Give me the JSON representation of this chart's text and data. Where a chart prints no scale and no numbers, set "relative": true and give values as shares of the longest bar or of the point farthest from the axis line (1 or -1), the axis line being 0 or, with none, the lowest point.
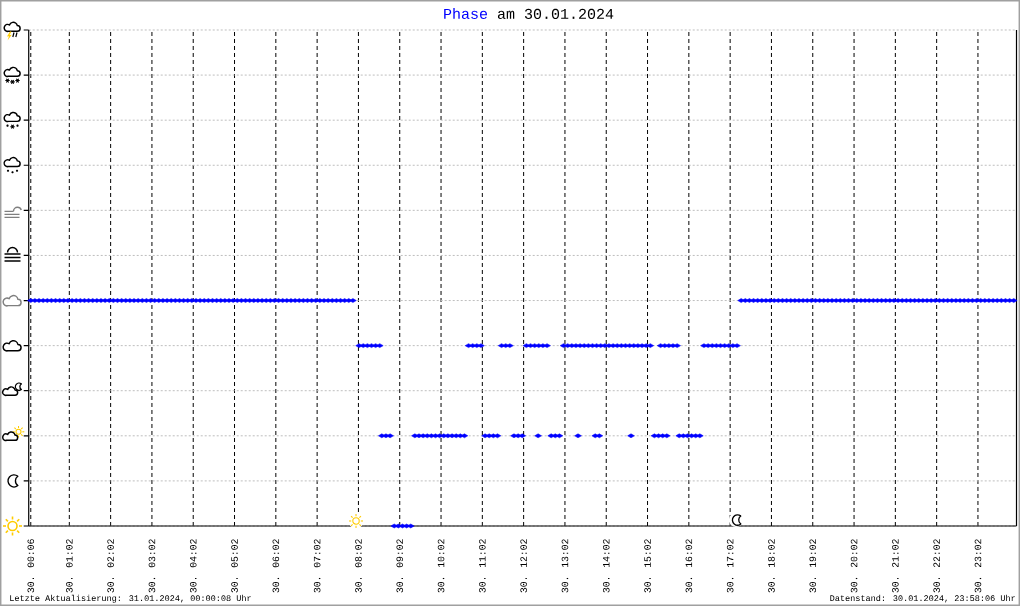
{
  "chart_data": {
    "type": "scatter",
    "title": "am 30.01.2024",
    "relative": true,
    "marker": "diamond",
    "grid": true,
    "xlim": [
      "2024-01-30T00:03",
      "2024-01-30T23:58"
    ],
    "xticks": [
      {
        "value": "2024-01-30T00:06",
        "label": "30. 00:06"
      },
      {
        "value": "2024-01-30T01:02",
        "label": "30. 01:02"
      },
      {
        "value": "2024-01-30T02:02",
        "label": "30. 02:02"
      },
      {
        "value": "2024-01-30T03:02",
        "label": "30. 03:02"
      },
      {
        "value": "2024-01-30T04:02",
        "label": "30. 04:02"
      },
      {
        "value": "2024-01-30T05:02",
        "label": "30. 05:02"
      },
      {
        "value": "2024-01-30T06:02",
        "label": "30. 06:02"
      },
      {
        "value": "2024-01-30T07:02",
        "label": "30. 07:02"
      },
      {
        "value": "2024-01-30T08:02",
        "label": "30. 08:02"
      },
      {
        "value": "2024-01-30T09:02",
        "label": "30. 09:02"
      },
      {
        "value": "2024-01-30T10:02",
        "label": "30. 10:02"
      },
      {
        "value": "2024-01-30T11:02",
        "label": "30. 11:02"
      },
      {
        "value": "2024-01-30T12:02",
        "label": "30. 12:02"
      },
      {
        "value": "2024-01-30T13:02",
        "label": "30. 13:02"
      },
      {
        "value": "2024-01-30T14:02",
        "label": "30. 14:02"
      },
      {
        "value": "2024-01-30T15:02",
        "label": "30. 15:02"
      },
      {
        "value": "2024-01-30T16:02",
        "label": "30. 16:02"
      },
      {
        "value": "2024-01-30T17:02",
        "label": "30. 17:02"
      },
      {
        "value": "2024-01-30T18:02",
        "label": "30. 18:02"
      },
      {
        "value": "2024-01-30T19:02",
        "label": "30. 19:02"
      },
      {
        "value": "2024-01-30T20:02",
        "label": "30. 20:02"
      },
      {
        "value": "2024-01-30T21:02",
        "label": "30. 21:02"
      },
      {
        "value": "2024-01-30T22:02",
        "label": "30. 22:02"
      },
      {
        "value": "2024-01-30T23:02",
        "label": "30. 23:02"
      }
    ],
    "x": [
      "2024-01-30T00:06",
      "2024-01-30T00:12",
      "2024-01-30T00:18",
      "2024-01-30T00:24",
      "2024-01-30T00:30",
      "2024-01-30T00:36",
      "2024-01-30T00:42",
      "2024-01-30T00:48",
      "2024-01-30T00:54",
      "2024-01-30T01:00",
      "2024-01-30T01:06",
      "2024-01-30T01:12",
      "2024-01-30T01:18",
      "2024-01-30T01:24",
      "2024-01-30T01:30",
      "2024-01-30T01:36",
      "2024-01-30T01:42",
      "2024-01-30T01:48",
      "2024-01-30T01:54",
      "2024-01-30T02:00",
      "2024-01-30T02:06",
      "2024-01-30T02:12",
      "2024-01-30T02:18",
      "2024-01-30T02:24",
      "2024-01-30T02:30",
      "2024-01-30T02:36",
      "2024-01-30T02:42",
      "2024-01-30T02:48",
      "2024-01-30T02:54",
      "2024-01-30T03:00",
      "2024-01-30T03:06",
      "2024-01-30T03:12",
      "2024-01-30T03:18",
      "2024-01-30T03:24",
      "2024-01-30T03:30",
      "2024-01-30T03:36",
      "2024-01-30T03:42",
      "2024-01-30T03:48",
      "2024-01-30T03:54",
      "2024-01-30T04:00",
      "2024-01-30T04:06",
      "2024-01-30T04:12",
      "2024-01-30T04:18",
      "2024-01-30T04:24",
      "2024-01-30T04:30",
      "2024-01-30T04:36",
      "2024-01-30T04:42",
      "2024-01-30T04:48",
      "2024-01-30T04:54",
      "2024-01-30T05:00",
      "2024-01-30T05:06",
      "2024-01-30T05:12",
      "2024-01-30T05:18",
      "2024-01-30T05:24",
      "2024-01-30T05:30",
      "2024-01-30T05:36",
      "2024-01-30T05:42",
      "2024-01-30T05:48",
      "2024-01-30T05:54",
      "2024-01-30T06:00",
      "2024-01-30T06:06",
      "2024-01-30T06:12",
      "2024-01-30T06:18",
      "2024-01-30T06:24",
      "2024-01-30T06:30",
      "2024-01-30T06:36",
      "2024-01-30T06:42",
      "2024-01-30T06:48",
      "2024-01-30T06:54",
      "2024-01-30T07:00",
      "2024-01-30T07:06",
      "2024-01-30T07:12",
      "2024-01-30T07:18",
      "2024-01-30T07:24",
      "2024-01-30T07:30",
      "2024-01-30T07:36",
      "2024-01-30T07:42",
      "2024-01-30T07:48",
      "2024-01-30T07:54",
      "2024-01-30T08:03",
      "2024-01-30T08:09",
      "2024-01-30T08:15",
      "2024-01-30T08:21",
      "2024-01-30T08:27",
      "2024-01-30T08:33",
      "2024-01-30T08:36",
      "2024-01-30T08:42",
      "2024-01-30T08:48",
      "2024-01-30T08:54",
      "2024-01-30T09:00",
      "2024-01-30T09:06",
      "2024-01-30T09:12",
      "2024-01-30T09:18",
      "2024-01-30T09:24",
      "2024-01-30T09:30",
      "2024-01-30T09:36",
      "2024-01-30T09:42",
      "2024-01-30T09:48",
      "2024-01-30T09:54",
      "2024-01-30T10:00",
      "2024-01-30T10:06",
      "2024-01-30T10:12",
      "2024-01-30T10:18",
      "2024-01-30T10:24",
      "2024-01-30T10:30",
      "2024-01-30T10:36",
      "2024-01-30T10:42",
      "2024-01-30T10:48",
      "2024-01-30T10:54",
      "2024-01-30T11:00",
      "2024-01-30T11:06",
      "2024-01-30T11:12",
      "2024-01-30T11:18",
      "2024-01-30T11:24",
      "2024-01-30T11:30",
      "2024-01-30T11:36",
      "2024-01-30T11:42",
      "2024-01-30T11:48",
      "2024-01-30T11:54",
      "2024-01-30T12:00",
      "2024-01-30T12:06",
      "2024-01-30T12:12",
      "2024-01-30T12:18",
      "2024-01-30T12:23",
      "2024-01-30T12:24",
      "2024-01-30T12:30",
      "2024-01-30T12:36",
      "2024-01-30T12:42",
      "2024-01-30T12:48",
      "2024-01-30T12:54",
      "2024-01-30T13:00",
      "2024-01-30T13:06",
      "2024-01-30T13:12",
      "2024-01-30T13:18",
      "2024-01-30T13:21",
      "2024-01-30T13:24",
      "2024-01-30T13:30",
      "2024-01-30T13:36",
      "2024-01-30T13:42",
      "2024-01-30T13:46",
      "2024-01-30T13:48",
      "2024-01-30T13:52",
      "2024-01-30T13:54",
      "2024-01-30T14:00",
      "2024-01-30T14:06",
      "2024-01-30T14:12",
      "2024-01-30T14:18",
      "2024-01-30T14:24",
      "2024-01-30T14:30",
      "2024-01-30T14:36",
      "2024-01-30T14:38",
      "2024-01-30T14:42",
      "2024-01-30T14:48",
      "2024-01-30T14:54",
      "2024-01-30T15:00",
      "2024-01-30T15:06",
      "2024-01-30T15:12",
      "2024-01-30T15:18",
      "2024-01-30T15:21",
      "2024-01-30T15:24",
      "2024-01-30T15:27",
      "2024-01-30T15:30",
      "2024-01-30T15:33",
      "2024-01-30T15:39",
      "2024-01-30T15:45",
      "2024-01-30T15:48",
      "2024-01-30T15:54",
      "2024-01-30T16:00",
      "2024-01-30T16:06",
      "2024-01-30T16:12",
      "2024-01-30T16:18",
      "2024-01-30T16:24",
      "2024-01-30T16:30",
      "2024-01-30T16:36",
      "2024-01-30T16:42",
      "2024-01-30T16:48",
      "2024-01-30T16:54",
      "2024-01-30T17:00",
      "2024-01-30T17:06",
      "2024-01-30T17:12",
      "2024-01-30T17:18",
      "2024-01-30T17:24",
      "2024-01-30T17:30",
      "2024-01-30T17:36",
      "2024-01-30T17:42",
      "2024-01-30T17:48",
      "2024-01-30T17:54",
      "2024-01-30T18:00",
      "2024-01-30T18:06",
      "2024-01-30T18:12",
      "2024-01-30T18:18",
      "2024-01-30T18:24",
      "2024-01-30T18:30",
      "2024-01-30T18:36",
      "2024-01-30T18:42",
      "2024-01-30T18:48",
      "2024-01-30T18:54",
      "2024-01-30T19:00",
      "2024-01-30T19:06",
      "2024-01-30T19:12",
      "2024-01-30T19:18",
      "2024-01-30T19:24",
      "2024-01-30T19:30",
      "2024-01-30T19:36",
      "2024-01-30T19:42",
      "2024-01-30T19:48",
      "2024-01-30T19:54",
      "2024-01-30T20:00",
      "2024-01-30T20:06",
      "2024-01-30T20:12",
      "2024-01-30T20:18",
      "2024-01-30T20:24",
      "2024-01-30T20:30",
      "2024-01-30T20:36",
      "2024-01-30T20:42",
      "2024-01-30T20:48",
      "2024-01-30T20:54",
      "2024-01-30T21:00",
      "2024-01-30T21:06",
      "2024-01-30T21:12",
      "2024-01-30T21:18",
      "2024-01-30T21:24",
      "2024-01-30T21:30",
      "2024-01-30T21:36",
      "2024-01-30T21:42",
      "2024-01-30T21:48",
      "2024-01-30T21:54",
      "2024-01-30T22:00",
      "2024-01-30T22:06",
      "2024-01-30T22:12",
      "2024-01-30T22:18",
      "2024-01-30T22:24",
      "2024-01-30T22:30",
      "2024-01-30T22:36",
      "2024-01-30T22:42",
      "2024-01-30T22:48",
      "2024-01-30T22:54",
      "2024-01-30T23:00",
      "2024-01-30T23:06",
      "2024-01-30T23:12",
      "2024-01-30T23:18",
      "2024-01-30T23:24",
      "2024-01-30T23:30",
      "2024-01-30T23:36",
      "2024-01-30T23:42",
      "2024-01-30T23:48",
      "2024-01-30T23:54"
    ],
    "series": [
      {
        "name": "Phase",
        "color": "#0000ff",
        "values": [
          1,
          1,
          1,
          1,
          1,
          1,
          1,
          1,
          1,
          1,
          1,
          1,
          1,
          1,
          1,
          1,
          1,
          1,
          1,
          1,
          1,
          1,
          1,
          1,
          1,
          1,
          1,
          1,
          1,
          1,
          1,
          1,
          1,
          1,
          1,
          1,
          1,
          1,
          1,
          1,
          1,
          1,
          1,
          1,
          1,
          1,
          1,
          1,
          1,
          1,
          1,
          1,
          1,
          1,
          1,
          1,
          1,
          1,
          1,
          1,
          1,
          1,
          1,
          1,
          1,
          1,
          1,
          1,
          1,
          1,
          1,
          1,
          1,
          1,
          1,
          1,
          1,
          1,
          1,
          0.8,
          0.8,
          0.8,
          0.8,
          0.8,
          0.8,
          0.4,
          0.4,
          0.4,
          0,
          0,
          0,
          0,
          0,
          0.4,
          0.4,
          0.4,
          0.4,
          0.4,
          0.4,
          0.4,
          0.4,
          0.4,
          0.4,
          0.4,
          0.4,
          0.4,
          0.8,
          0.8,
          0.8,
          0.8,
          0.4,
          0.4,
          0.4,
          0.4,
          0.8,
          0.8,
          0.8,
          0.4,
          0.4,
          0.4,
          0.8,
          0.8,
          0.8,
          0.4,
          0.8,
          0.8,
          0.8,
          0.4,
          0.4,
          0.4,
          0.8,
          0.8,
          0.8,
          0.8,
          0.4,
          0.8,
          0.8,
          0.8,
          0.8,
          0.4,
          0.8,
          0.4,
          0.8,
          0.8,
          0.8,
          0.8,
          0.8,
          0.8,
          0.8,
          0.8,
          0.4,
          0.8,
          0.8,
          0.8,
          0.8,
          0.8,
          0.4,
          0.4,
          0.8,
          0.4,
          0.8,
          0.4,
          0.8,
          0.8,
          0.8,
          0.4,
          0.4,
          0.4,
          0.4,
          0.4,
          0.4,
          0.8,
          0.8,
          0.8,
          0.8,
          0.8,
          0.8,
          0.8,
          0.8,
          0.8,
          1,
          1,
          1,
          1,
          1,
          1,
          1,
          1,
          1,
          1,
          1,
          1,
          1,
          1,
          1,
          1,
          1,
          1,
          1,
          1,
          1,
          1,
          1,
          1,
          1,
          1,
          1,
          1,
          1,
          1,
          1,
          1,
          1,
          1,
          1,
          1,
          1,
          1,
          1,
          1,
          1,
          1,
          1,
          1,
          1,
          1,
          1,
          1,
          1,
          1,
          1,
          1,
          1,
          1,
          1,
          1,
          1,
          1,
          1,
          1,
          1,
          1,
          1,
          1,
          1,
          1,
          1
        ]
      }
    ],
    "annotations": [
      "Letzte Aktualisierung: 31.01.2024, 00:00:08 Uhr",
      "Datenstand: 30.01.2024, 23:58:06 Uhr"
    ]
  }
}
